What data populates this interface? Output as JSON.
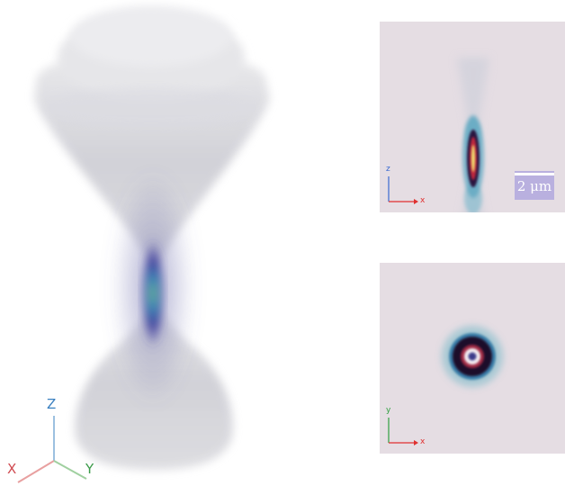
{
  "volume_view": {
    "axis_labels": {
      "z": "Z",
      "x": "X",
      "y": "Y"
    },
    "axis_colors": {
      "z": "#3a80c0",
      "x": "#d04a50",
      "y": "#3a9a48"
    }
  },
  "xz_panel": {
    "axis_labels": {
      "vertical": "z",
      "horizontal": "x"
    },
    "scalebar_label": "2 μm"
  },
  "xy_panel": {
    "axis_labels": {
      "vertical": "y",
      "horizontal": "x"
    }
  },
  "colors": {
    "panel_background": "#e5dde3",
    "focus_core": "#f0e070",
    "focus_ring_dark": "#2a0a30",
    "halo": "#6aa0b8"
  }
}
